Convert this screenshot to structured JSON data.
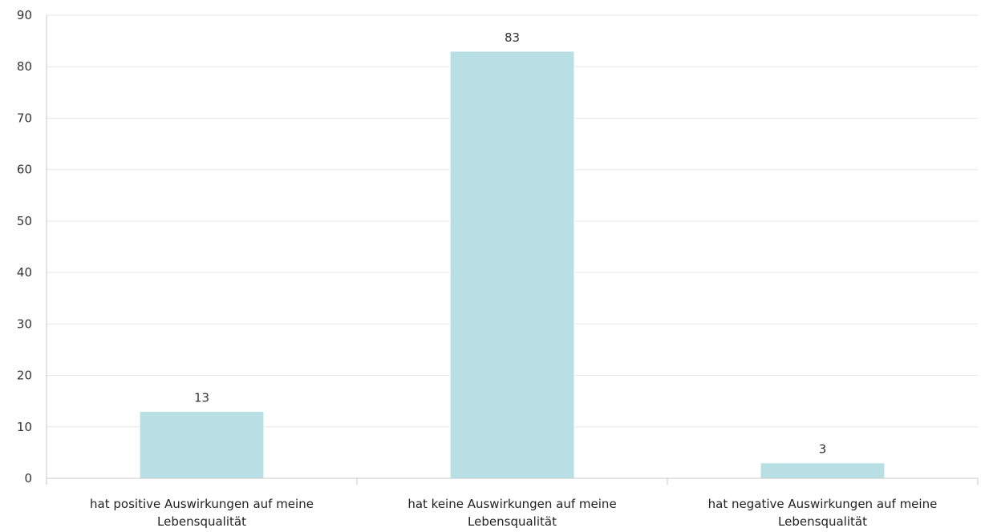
{
  "chart_data": {
    "type": "bar",
    "categories": [
      [
        "hat positive Auswirkungen auf meine",
        "Lebensqualität"
      ],
      [
        "hat keine Auswirkungen auf meine",
        "Lebensqualität"
      ],
      [
        "hat negative Auswirkungen auf meine",
        "Lebensqualität"
      ]
    ],
    "values": [
      13,
      83,
      3
    ],
    "data_labels": [
      "13",
      "83",
      "3"
    ],
    "yticks": [
      "0",
      "10",
      "20",
      "30",
      "40",
      "50",
      "60",
      "70",
      "80",
      "90"
    ],
    "ylim": [
      0,
      90
    ],
    "title": "",
    "xlabel": "",
    "ylabel": "",
    "grid": true,
    "bar_color": "#b8dfe3"
  }
}
